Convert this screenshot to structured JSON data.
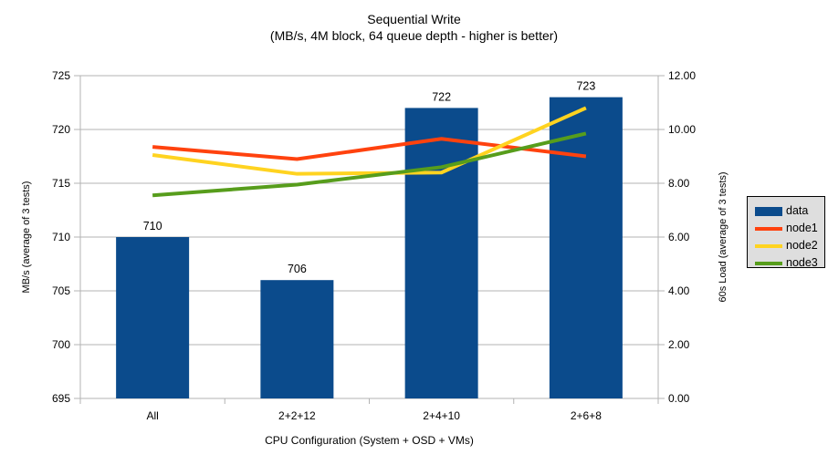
{
  "chart_data": {
    "type": "bar",
    "title": "Sequential Write",
    "subtitle": "(MB/s, 4M block, 64 queue depth - higher is better)",
    "categories": [
      "All",
      "2+2+12",
      "2+4+10",
      "2+6+8"
    ],
    "xlabel": "CPU Configuration (System + OSD + VMs)",
    "left_axis": {
      "label": "MB/s (average of 3 tests)",
      "min": 695,
      "max": 725,
      "step": 5,
      "ticks": [
        "725",
        "720",
        "715",
        "710",
        "705",
        "700",
        "695"
      ]
    },
    "right_axis": {
      "label": "60s Load (average of 3 tests)",
      "min": 0,
      "max": 12,
      "step": 2,
      "ticks": [
        "12.00",
        "10.00",
        "8.00",
        "6.00",
        "4.00",
        "2.00",
        "0.00"
      ]
    },
    "bar_series": {
      "name": "data",
      "axis": "left",
      "color": "#0b4b8c",
      "values": [
        710,
        706,
        722,
        723
      ],
      "labels": [
        "710",
        "706",
        "722",
        "723"
      ]
    },
    "line_series": [
      {
        "name": "node1",
        "axis": "right",
        "color": "#ff420e",
        "values": [
          9.35,
          8.9,
          9.65,
          9.0
        ]
      },
      {
        "name": "node2",
        "axis": "right",
        "color": "#ffd320",
        "values": [
          9.05,
          8.35,
          8.4,
          10.8
        ]
      },
      {
        "name": "node3",
        "axis": "right",
        "color": "#579d1c",
        "values": [
          7.55,
          7.95,
          8.6,
          9.85
        ]
      }
    ],
    "grid": "horizontal",
    "grid_color": "#b3b3b3",
    "legend_position": "right"
  }
}
